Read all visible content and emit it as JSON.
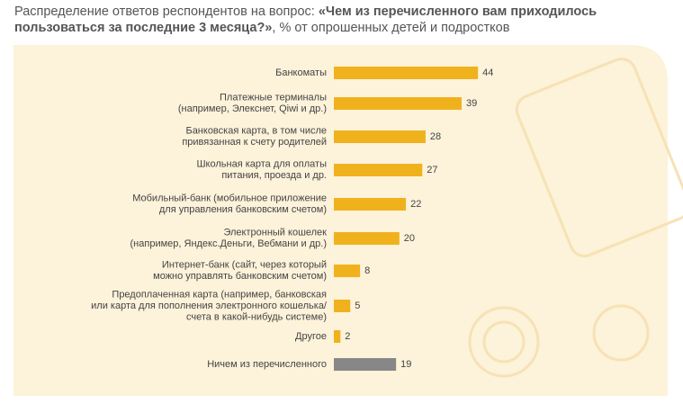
{
  "chart_data": {
    "type": "bar",
    "orientation": "horizontal",
    "title_parts": [
      "Распределение ответов респондентов на вопрос: ",
      "«Чем из перечисленного вам приходилось пользоваться за последние 3 месяца?»",
      ", % от опрошенных детей и подростков"
    ],
    "categories": [
      [
        "Банкоматы"
      ],
      [
        "Платежные терминалы",
        "(например, Элекснет, Qiwi и др.)"
      ],
      [
        "Банковская карта, в том числе",
        "привязанная к счету родителей"
      ],
      [
        "Школьная карта для оплаты",
        "питания, проезда и др."
      ],
      [
        "Мобильный-банк (мобильное приложение",
        "для управления банковским счетом)"
      ],
      [
        "Электронный кошелек",
        "(например, Яндекс.Деньги, Вебмани и др.)"
      ],
      [
        "Интернет-банк (сайт, через который",
        "можно управлять банковским счетом)"
      ],
      [
        "Предоплаченная карта (например, банковская",
        "или карта для пополнения электронного кошелька/",
        "счета в какой-нибудь системе)"
      ],
      [
        "Другое"
      ],
      [
        "Ничем из перечисленного"
      ]
    ],
    "values": [
      44,
      39,
      28,
      27,
      22,
      20,
      8,
      5,
      2,
      19
    ],
    "colors": [
      "#f0b21c",
      "#f0b21c",
      "#f0b21c",
      "#f0b21c",
      "#f0b21c",
      "#f0b21c",
      "#f0b21c",
      "#f0b21c",
      "#f0b21c",
      "#878787"
    ]
  }
}
